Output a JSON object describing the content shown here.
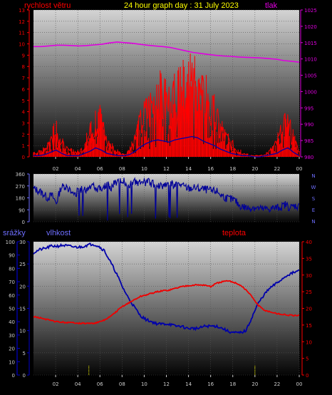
{
  "header": {
    "title": "24 hour graph day : 31 July 2023",
    "left_label": "rychlost větru",
    "right_label": "tlak"
  },
  "colors": {
    "wind_speed": "#ff0000",
    "wind_gust_base": "#0000aa",
    "pressure": "#e000e0",
    "direction": "#000099",
    "humidity": "#0000aa",
    "temperature": "#ee0000",
    "rain": "#ffff00",
    "rain_axis": "#0000cc",
    "temp_axis": "#ff0000"
  },
  "chart_data": [
    {
      "type": "line",
      "name_id": "wind-pressure",
      "left_axis": {
        "label": "rychlost větru",
        "ylim": [
          0,
          13
        ],
        "ticks": [
          "0",
          "1",
          "2",
          "3",
          "4",
          "5",
          "6",
          "7",
          "8",
          "9",
          "10",
          "11",
          "12",
          "13"
        ]
      },
      "right_axis": {
        "label": "tlak",
        "ylim": [
          980,
          1025
        ],
        "ticks": [
          "980",
          "985",
          "990",
          "995",
          "1000",
          "1005",
          "1010",
          "1015",
          "1020",
          "1025"
        ]
      },
      "x_ticks": [
        "02",
        "04",
        "06",
        "08",
        "10",
        "12",
        "14",
        "16",
        "18",
        "20",
        "22",
        "00"
      ],
      "series": [
        {
          "name": "",
          "color_key": "wind_speed",
          "values": [
            0.5,
            0.4,
            0.8,
            1.6,
            2.3,
            1.2,
            0.6,
            0.5,
            0.4,
            1.0,
            2.2,
            3.6,
            3.0,
            1.4,
            0.8,
            0.4,
            0.2,
            0.6,
            1.8,
            3.2,
            4.2,
            5.0,
            5.6,
            5.2,
            5.0,
            5.4,
            5.8,
            6.0,
            6.2,
            6.0,
            5.2,
            4.6,
            3.8,
            2.6,
            1.8,
            1.2,
            0.6,
            0.4,
            0.2,
            0.1,
            0.1,
            0.2,
            0.6,
            1.2,
            2.4,
            3.2,
            1.6,
            0.4
          ]
        },
        {
          "name": "",
          "color_key": "wind_gust_base",
          "values": [
            0.1,
            0.1,
            0.2,
            0.4,
            0.6,
            0.3,
            0.1,
            0.1,
            0.1,
            0.3,
            0.5,
            0.8,
            0.6,
            0.3,
            0.2,
            0.1,
            0.1,
            0.2,
            0.5,
            0.9,
            1.2,
            1.4,
            1.5,
            1.4,
            1.3,
            1.5,
            1.6,
            1.7,
            1.8,
            1.7,
            1.4,
            1.2,
            1.0,
            0.7,
            0.5,
            0.3,
            0.2,
            0.1,
            0.1,
            0.0,
            0.0,
            0.1,
            0.2,
            0.3,
            0.6,
            0.8,
            0.4,
            0.1
          ]
        },
        {
          "name": "",
          "color_key": "pressure",
          "axis": "right",
          "values": [
            1013.8,
            1013.8,
            1014.0,
            1014.2,
            1014.2,
            1014.1,
            1014.0,
            1014.1,
            1014.3,
            1014.5,
            1014.9,
            1015.2,
            1015.0,
            1014.8,
            1014.5,
            1014.2,
            1014.0,
            1013.8,
            1013.5,
            1013.0,
            1012.5,
            1012.0,
            1011.7,
            1011.4,
            1011.1,
            1010.9,
            1010.8,
            1010.6,
            1010.5,
            1010.4,
            1010.3,
            1010.1,
            1009.9,
            1009.5,
            1009.3,
            1009.0
          ]
        }
      ]
    },
    {
      "type": "line",
      "name_id": "wind-direction",
      "left_axis": {
        "ylim": [
          0,
          360
        ],
        "ticks": [
          "0",
          "90",
          "180",
          "270",
          "360"
        ]
      },
      "right_labels": [
        "N",
        "W",
        "S",
        "E",
        "N"
      ],
      "x_ticks": [
        "02",
        "04",
        "06",
        "08",
        "10",
        "12",
        "14",
        "16",
        "18",
        "20",
        "22",
        "00"
      ],
      "series": [
        {
          "name": "",
          "color_key": "direction",
          "values": [
            250,
            235,
            215,
            180,
            200,
            140,
            260,
            270,
            230,
            200,
            250,
            230,
            265,
            280,
            250,
            260,
            280,
            260,
            300,
            310,
            300,
            280,
            300,
            290,
            295,
            300,
            285,
            280,
            270,
            290,
            285,
            275,
            280,
            260,
            250,
            255,
            250,
            245,
            240,
            230,
            230,
            200,
            180,
            170,
            160,
            120,
            110,
            100,
            110,
            100,
            95,
            95,
            100,
            105,
            110,
            130,
            105,
            120,
            115
          ]
        }
      ]
    },
    {
      "type": "line",
      "name_id": "humidity-temp",
      "left_axis": {
        "label": "srážky",
        "ylim": [
          0,
          100
        ],
        "ticks": [
          "0",
          "10",
          "20",
          "30",
          "40",
          "50",
          "60",
          "70",
          "80",
          "90",
          "100"
        ]
      },
      "humidity_axis": {
        "label": "vlhkost",
        "ylim": [
          0,
          30
        ],
        "ticks": [
          "0",
          "5",
          "10",
          "15",
          "20",
          "25",
          "30"
        ]
      },
      "right_axis": {
        "label": "teplota",
        "ylim": [
          0,
          40
        ],
        "ticks": [
          "0",
          "5",
          "10",
          "15",
          "20",
          "25",
          "30",
          "35",
          "40"
        ]
      },
      "x_ticks": [
        "02",
        "04",
        "06",
        "08",
        "10",
        "12",
        "14",
        "16",
        "18",
        "20",
        "22",
        "00"
      ],
      "series": [
        {
          "name": "",
          "color_key": "humidity",
          "axis": "humidity",
          "values": [
            27.5,
            28.2,
            28.5,
            29.0,
            29.0,
            29.2,
            29.0,
            28.8,
            28.8,
            29.2,
            29.5,
            29.0,
            28.0,
            25.5,
            23.0,
            20.0,
            17.5,
            15.5,
            13.5,
            12.5,
            12.0,
            11.5,
            11.5,
            11.5,
            11.0,
            11.0,
            10.5,
            10.5,
            10.5,
            11.0,
            11.0,
            11.0,
            10.5,
            9.8,
            9.5,
            9.5,
            10.0,
            13.0,
            16.0,
            18.0,
            19.5,
            20.5,
            21.5,
            22.5,
            23.0,
            23.5
          ]
        },
        {
          "name": "",
          "color_key": "temperature",
          "axis": "right",
          "values": [
            17.5,
            17.2,
            16.8,
            16.3,
            16.0,
            15.8,
            15.7,
            15.7,
            15.5,
            15.5,
            15.5,
            15.8,
            16.5,
            17.5,
            19.0,
            20.5,
            21.5,
            22.5,
            23.5,
            24.0,
            24.5,
            25.0,
            25.3,
            25.5,
            26.0,
            26.5,
            26.8,
            27.0,
            27.0,
            27.0,
            26.5,
            27.5,
            28.0,
            28.2,
            27.8,
            27.0,
            25.5,
            23.5,
            21.0,
            19.5,
            19.0,
            18.5,
            18.2,
            18.0,
            17.8,
            17.8
          ]
        },
        {
          "name": "",
          "color_key": "rain",
          "type": "bar",
          "values_at_hour": {
            "05": 0.5,
            "20": 0.5
          }
        }
      ]
    }
  ]
}
